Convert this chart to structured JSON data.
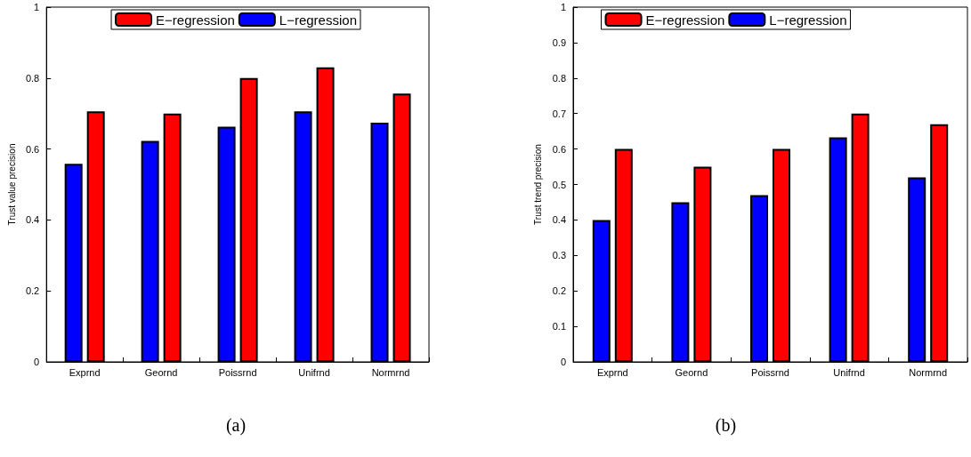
{
  "chart_data": [
    {
      "type": "bar",
      "ylabel": "Trust value precision",
      "categories": [
        "Exprnd",
        "Geornd",
        "Poissrnd",
        "Unifrnd",
        "Normrnd"
      ],
      "series": [
        {
          "name": "L−regression",
          "color": "#0000ff",
          "values": [
            0.558,
            0.623,
            0.663,
            0.706,
            0.674
          ]
        },
        {
          "name": "E−regression",
          "color": "#ff0000",
          "values": [
            0.706,
            0.7,
            0.8,
            0.83,
            0.756
          ]
        }
      ],
      "ylim": [
        0,
        1
      ],
      "yticks": [
        0,
        0.2,
        0.4,
        0.6,
        0.8,
        1
      ],
      "grid": false,
      "legend": "top",
      "annotations": [
        "(a)"
      ]
    },
    {
      "type": "bar",
      "ylabel": "Trust trend precision",
      "categories": [
        "Exprnd",
        "Geornd",
        "Poissrnd",
        "Unifrnd",
        "Normrnd"
      ],
      "series": [
        {
          "name": "L−regression",
          "color": "#0000ff",
          "values": [
            0.4,
            0.45,
            0.47,
            0.633,
            0.52
          ]
        },
        {
          "name": "E−regression",
          "color": "#ff0000",
          "values": [
            0.6,
            0.55,
            0.6,
            0.7,
            0.67
          ]
        }
      ],
      "ylim": [
        0,
        1
      ],
      "yticks": [
        0,
        0.1,
        0.2,
        0.3,
        0.4,
        0.5,
        0.6,
        0.7,
        0.8,
        0.9,
        1
      ],
      "grid": false,
      "legend": "top",
      "annotations": [
        "(b)"
      ]
    }
  ]
}
